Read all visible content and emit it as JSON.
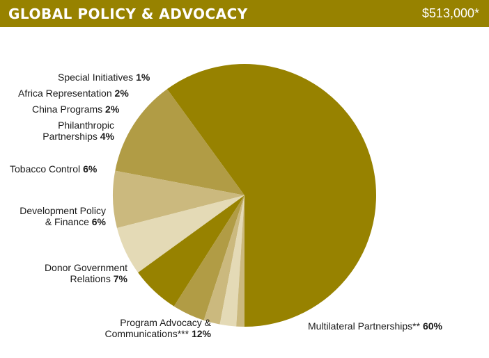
{
  "header": {
    "title": "GLOBAL POLICY & ADVOCACY",
    "amount": "$513,000*"
  },
  "colors": {
    "header_bg": "#978200",
    "header_text": "#ffffff"
  },
  "chart_data": {
    "type": "pie",
    "unit": "%",
    "slices": [
      {
        "name": "Multilateral Partnerships**",
        "value": 60,
        "color": "#978200",
        "label_lines": [
          "Multilateral Partnerships**"
        ],
        "value_text": "60%"
      },
      {
        "name": "Program Advocacy & Communications***",
        "value": 12,
        "color": "#b19c45",
        "label_lines": [
          "Program Advocacy &",
          "Communications***"
        ],
        "value_text": "12%"
      },
      {
        "name": "Donor Government Relations",
        "value": 7,
        "color": "#cbb97e",
        "label_lines": [
          "Donor Government",
          "Relations"
        ],
        "value_text": "7%"
      },
      {
        "name": "Development Policy & Finance",
        "value": 6,
        "color": "#e4dab6",
        "label_lines": [
          "Development Policy",
          "& Finance"
        ],
        "value_text": "6%"
      },
      {
        "name": "Tobacco Control",
        "value": 6,
        "color": "#978200",
        "label_lines": [
          "Tobacco Control"
        ],
        "value_text": "6%"
      },
      {
        "name": "Philanthropic Partnerships",
        "value": 4,
        "color": "#b19c45",
        "label_lines": [
          "Philanthropic",
          "Partnerships"
        ],
        "value_text": "4%"
      },
      {
        "name": "China Programs",
        "value": 2,
        "color": "#cbb97e",
        "label_lines": [
          "China Programs"
        ],
        "value_text": "2%"
      },
      {
        "name": "Africa Representation",
        "value": 2,
        "color": "#e4dab6",
        "label_lines": [
          "Africa Representation"
        ],
        "value_text": "2%"
      },
      {
        "name": "Special Initiatives",
        "value": 1,
        "color": "#cbb97e",
        "label_lines": [
          "Special Initiatives"
        ],
        "value_text": "1%"
      }
    ]
  }
}
